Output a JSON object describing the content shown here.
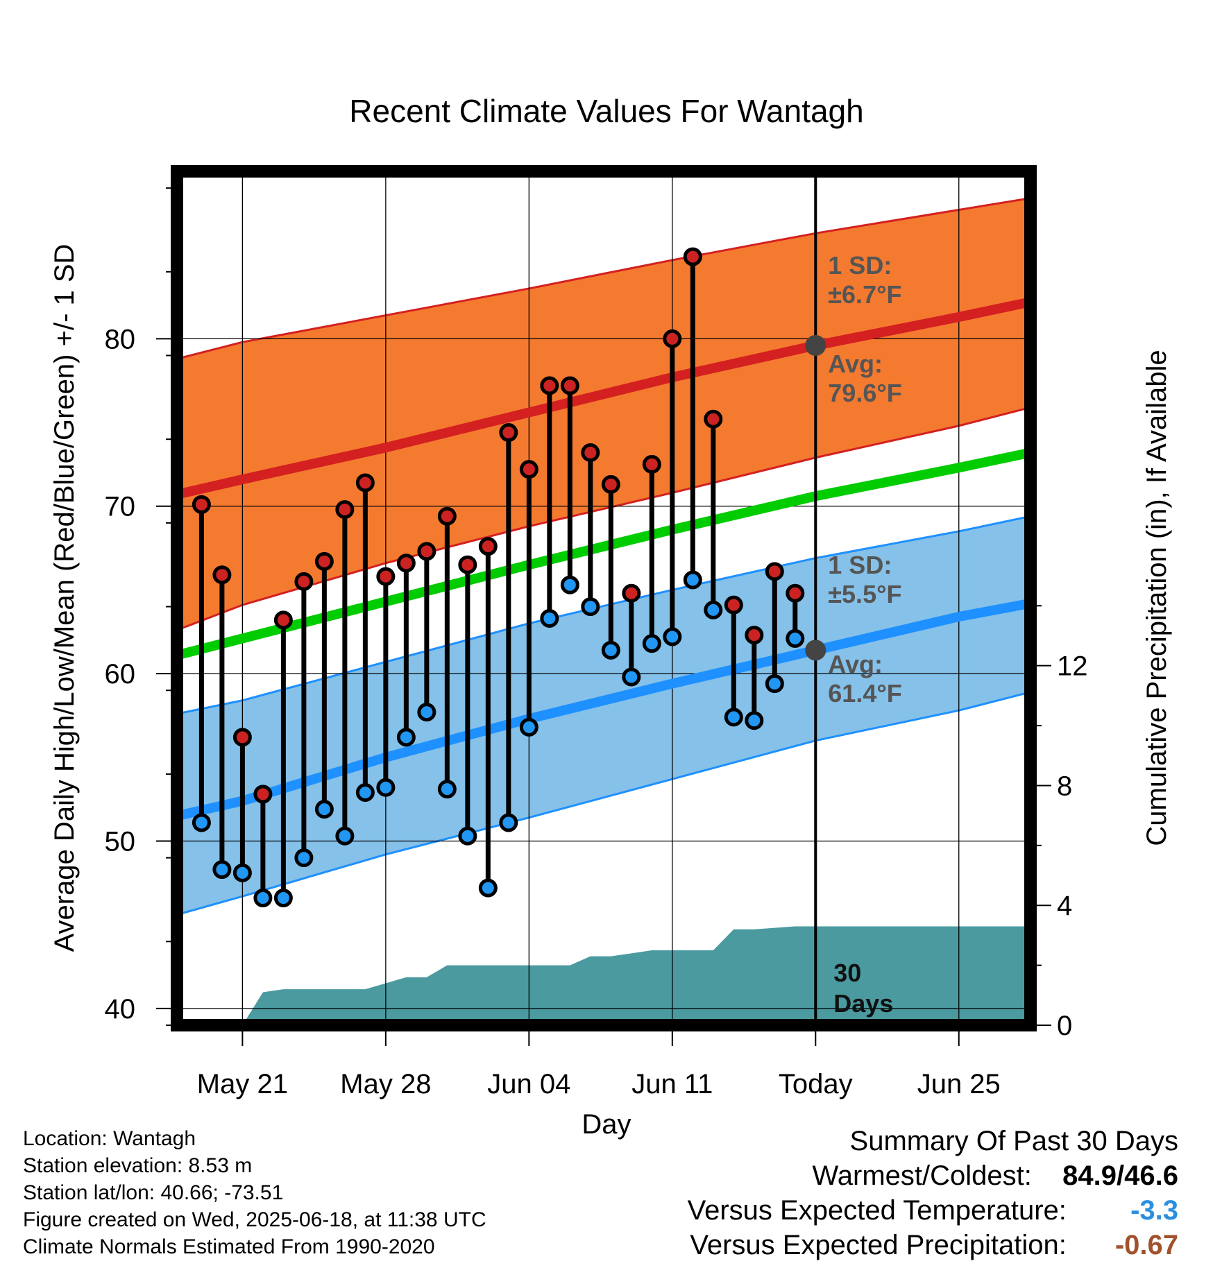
{
  "chart_data": {
    "type": "line",
    "title": "Recent Climate Values For Wantagh",
    "xlabel": "Day",
    "ylabel": "Average Daily High/Low/Mean (Red/Blue/Green) +/- 1 SD",
    "y2label": "Cumulative Precipitation (in), If Available",
    "ylim": [
      39,
      90
    ],
    "y2lim": [
      0,
      28.5
    ],
    "xlim": [
      -3.2,
      38.5
    ],
    "y_ticks": [
      "40",
      "50",
      "60",
      "70",
      "80"
    ],
    "y2_ticks": [
      "0",
      "4",
      "8",
      "12"
    ],
    "x_ticks": [
      {
        "day": 0,
        "label": "May 21"
      },
      {
        "day": 7,
        "label": "May 28"
      },
      {
        "day": 14,
        "label": "Jun 04"
      },
      {
        "day": 21,
        "label": "Jun 11"
      },
      {
        "day": 28,
        "label": "Today"
      },
      {
        "day": 35,
        "label": "Jun 25"
      }
    ],
    "observed": {
      "days": [
        -2,
        -1,
        0,
        1,
        2,
        3,
        4,
        5,
        6,
        7,
        8,
        9,
        10,
        11,
        12,
        13,
        14,
        15,
        16,
        17,
        18,
        19,
        20,
        21,
        22,
        23,
        24,
        25,
        26,
        27
      ],
      "highs": [
        70.1,
        65.9,
        56.2,
        52.8,
        63.2,
        65.5,
        66.7,
        69.8,
        71.4,
        65.8,
        66.6,
        67.3,
        69.4,
        66.5,
        67.6,
        74.4,
        72.2,
        77.2,
        77.2,
        73.2,
        71.3,
        64.8,
        72.5,
        80.0,
        84.9,
        75.2,
        64.1,
        62.3,
        66.1,
        64.8
      ],
      "lows": [
        51.1,
        48.3,
        48.1,
        46.6,
        46.6,
        49.0,
        51.9,
        50.3,
        52.9,
        53.2,
        56.2,
        57.7,
        53.1,
        50.3,
        47.2,
        51.1,
        56.8,
        63.3,
        65.3,
        64.0,
        61.4,
        59.8,
        61.8,
        62.2,
        65.6,
        63.8,
        57.4,
        57.2,
        59.4,
        62.1
      ]
    },
    "normals": {
      "days": [
        -3.2,
        0,
        7,
        14,
        21,
        28,
        35,
        38.5
      ],
      "high_avg": [
        70.7,
        71.6,
        73.5,
        75.6,
        77.7,
        79.6,
        81.3,
        82.2
      ],
      "high_upper": [
        78.8,
        79.8,
        81.4,
        83.0,
        84.7,
        86.3,
        87.7,
        88.4
      ],
      "high_lower": [
        62.6,
        64.1,
        66.6,
        68.8,
        70.8,
        72.9,
        74.8,
        75.9
      ],
      "mean": [
        61.1,
        62.1,
        64.3,
        66.5,
        68.6,
        70.6,
        72.3,
        73.2
      ],
      "low_avg": [
        51.5,
        52.4,
        55.0,
        57.3,
        59.4,
        61.4,
        63.4,
        64.2
      ],
      "low_upper": [
        57.6,
        58.4,
        60.7,
        63.0,
        65.0,
        66.9,
        68.5,
        69.4
      ],
      "low_lower": [
        45.6,
        46.7,
        49.2,
        51.4,
        53.7,
        56.0,
        57.8,
        58.9
      ]
    },
    "precip": {
      "days": [
        0,
        1,
        2,
        3,
        4,
        5,
        6,
        7,
        8,
        9,
        10,
        11,
        12,
        13,
        14,
        15,
        16,
        17,
        18,
        19,
        20,
        21,
        22,
        23,
        24,
        25,
        26,
        27,
        28,
        29,
        30,
        31,
        32,
        33,
        34,
        35,
        36,
        37,
        38.5
      ],
      "cumulative": [
        0,
        1.1,
        1.2,
        1.2,
        1.2,
        1.2,
        1.2,
        1.4,
        1.6,
        1.6,
        2.0,
        2.0,
        2.0,
        2.0,
        2.0,
        2.0,
        2.0,
        2.3,
        2.3,
        2.4,
        2.5,
        2.5,
        2.5,
        2.5,
        3.2,
        3.2,
        3.25,
        3.3,
        3.3,
        3.3,
        3.3,
        3.3,
        3.3,
        3.3,
        3.3,
        3.3,
        3.3,
        3.3,
        3.3
      ]
    },
    "today_markers": {
      "high_avg": 79.6,
      "low_avg": 61.4
    },
    "annotations": {
      "high_sd_label": "1 SD:",
      "high_sd_value": "±6.7°F",
      "high_avg_label": "Avg:",
      "high_avg_value": "79.6°F",
      "low_sd_label": "1 SD:",
      "low_sd_value": "±5.5°F",
      "low_avg_label": "Avg:",
      "low_avg_value": "61.4°F",
      "days_count": "30",
      "days_word": "Days"
    },
    "colors": {
      "high_band": "#f47a30",
      "high_line": "#d42020",
      "mean_line": "#00cc00",
      "low_band": "#85c1e9",
      "low_line": "#1e90ff",
      "precip": "#4a9aa0",
      "high_dot": "#cc2222",
      "low_dot": "#2196f3",
      "marker": "#444444"
    }
  },
  "footer": {
    "location": "Location: Wantagh",
    "elevation": "Station elevation: 8.53 m",
    "latlon": "Station lat/lon: 40.66; -73.51",
    "created": "Figure created on Wed, 2025-06-18, at 11:38 UTC",
    "normals": "Climate Normals Estimated From 1990-2020"
  },
  "summary": {
    "title": "Summary Of Past 30 Days",
    "warm_cold_label": "Warmest/Coldest:",
    "warm_cold_value": "84.9/46.6",
    "temp_label": "Versus Expected Temperature:",
    "temp_value": "-3.3",
    "temp_color": "#2b8fe0",
    "precip_label": "Versus Expected Precipitation:",
    "precip_value": "-0.67",
    "precip_color": "#a0522d"
  }
}
